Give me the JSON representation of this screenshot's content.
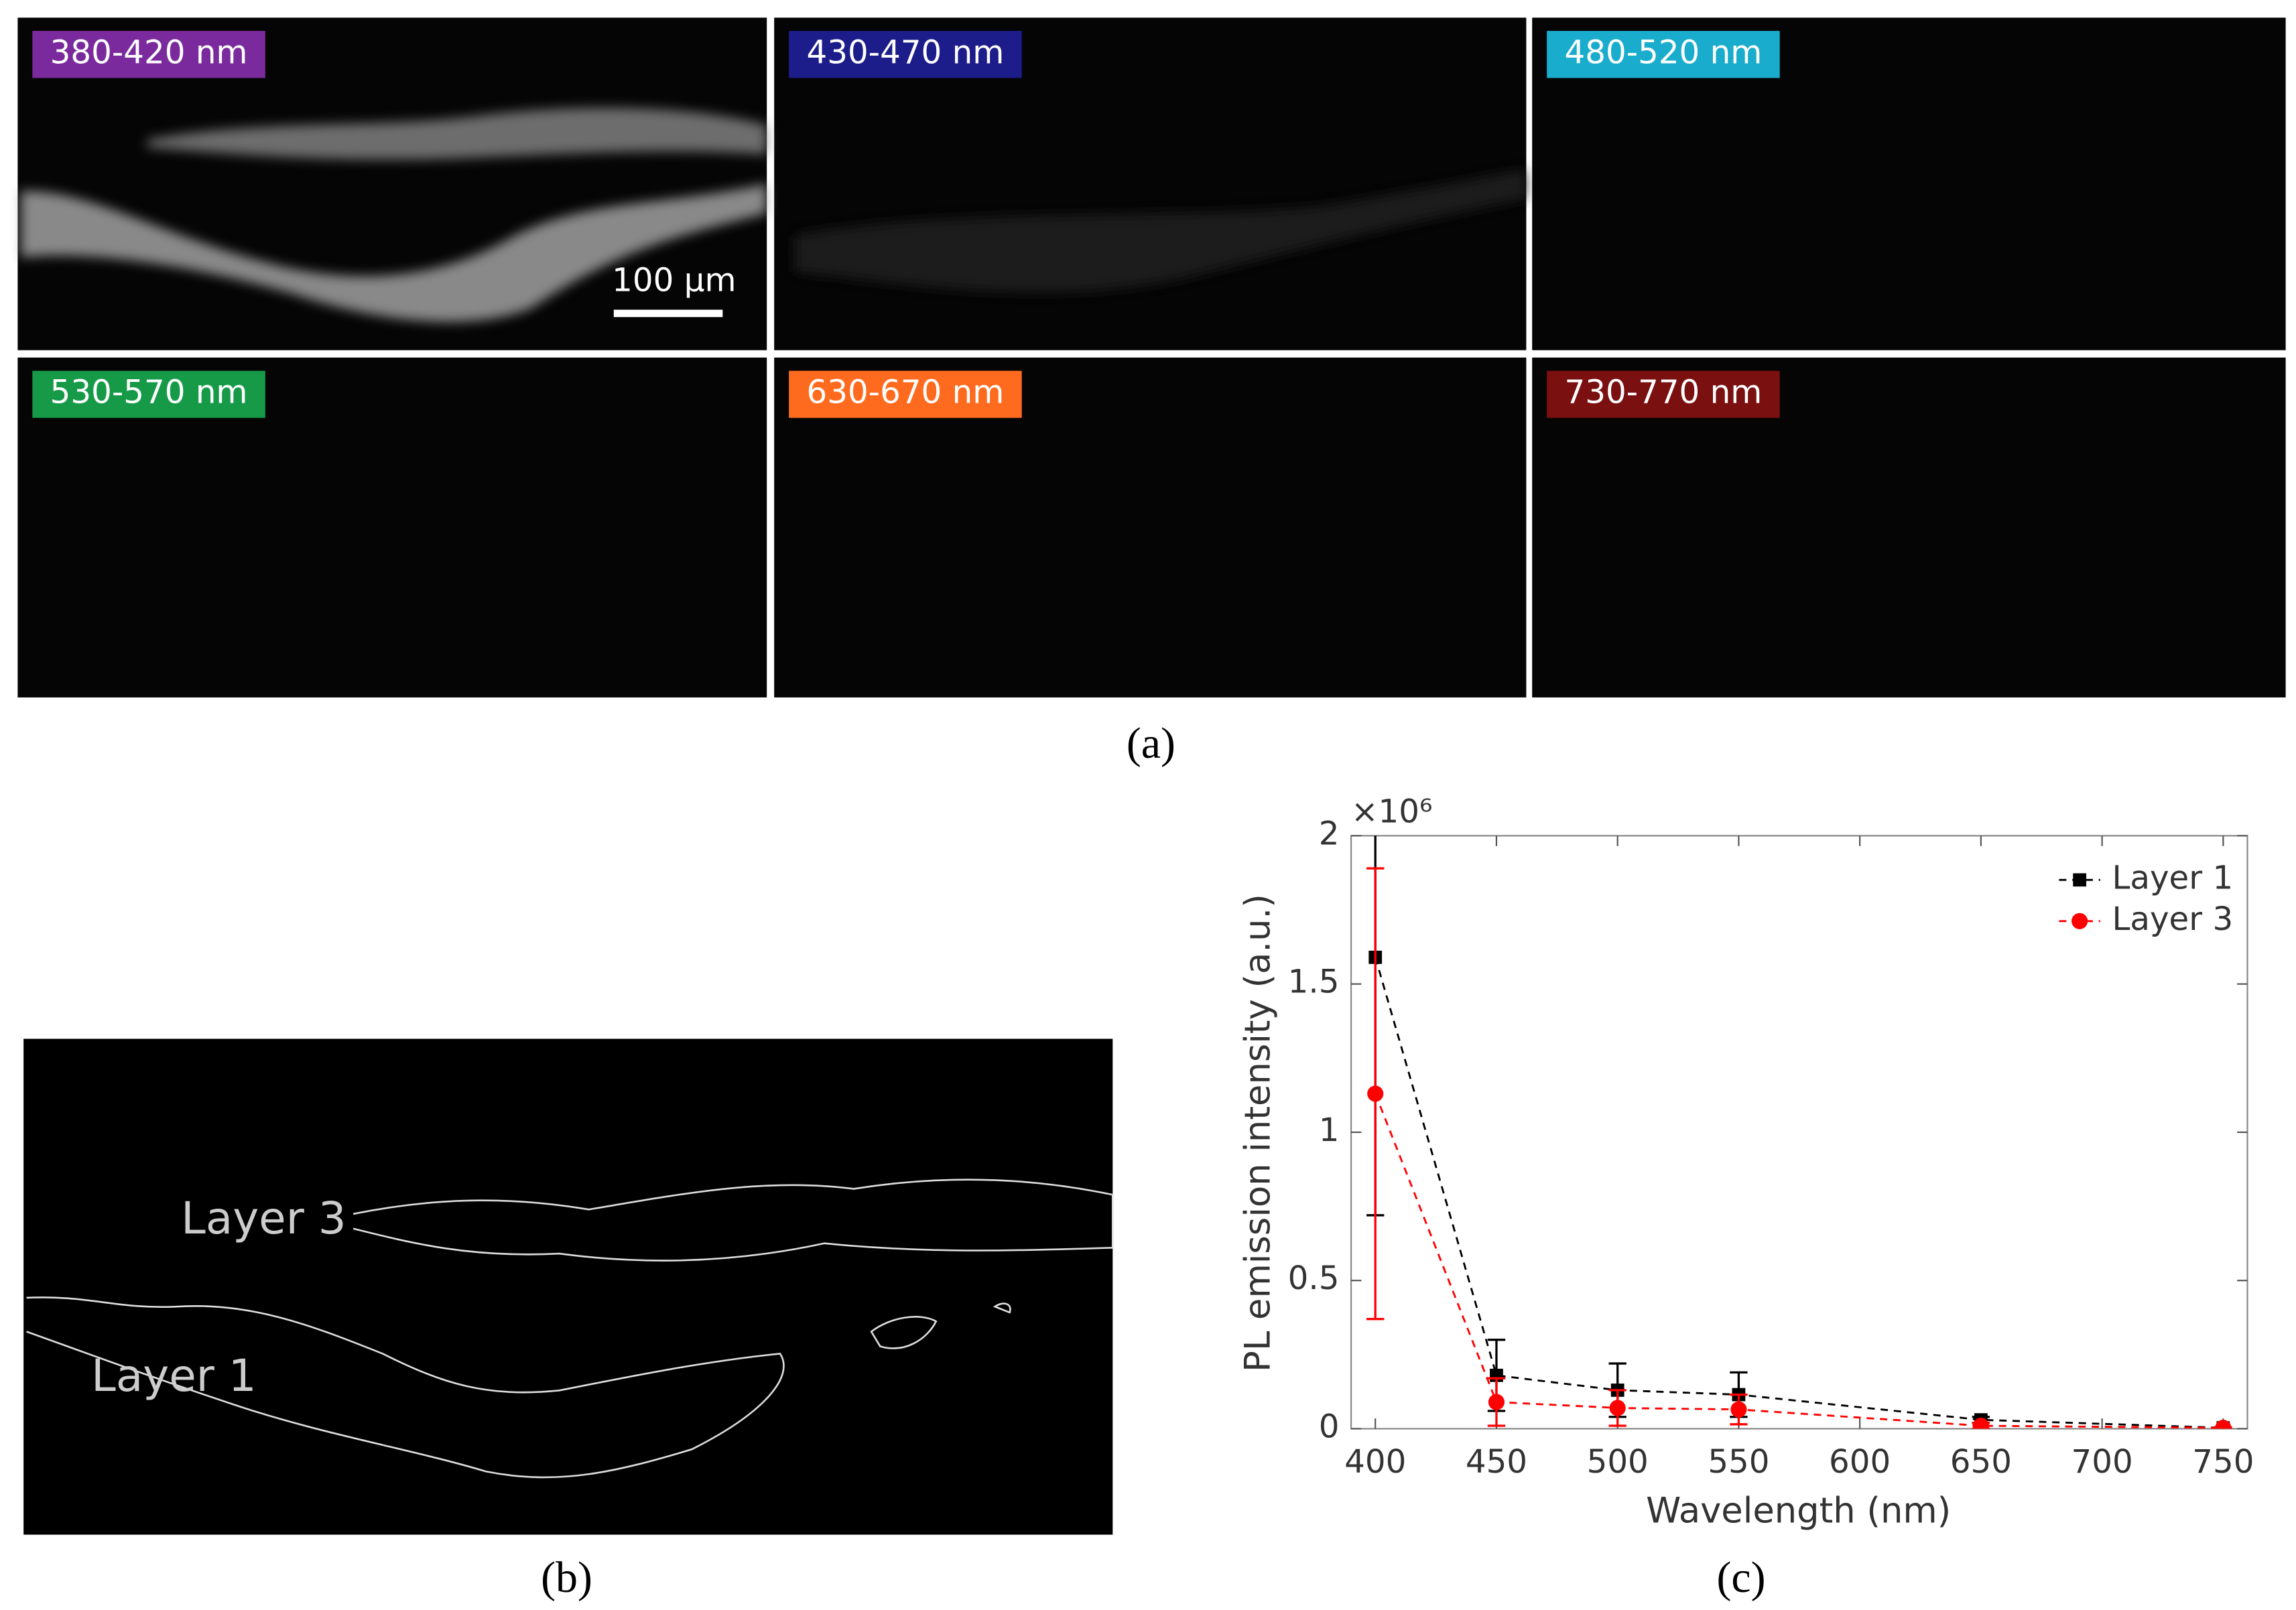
{
  "panel_a": {
    "caption": "(a)",
    "scale_bar": "100 µm",
    "tiles": [
      {
        "label": "380-420 nm",
        "color": "#7a2a9c"
      },
      {
        "label": "430-470 nm",
        "color": "#1c1c8a"
      },
      {
        "label": "480-520 nm",
        "color": "#1aaccc"
      },
      {
        "label": "530-570 nm",
        "color": "#169a48"
      },
      {
        "label": "630-670 nm",
        "color": "#ff6b1e"
      },
      {
        "label": "730-770 nm",
        "color": "#7a1010"
      }
    ]
  },
  "panel_b": {
    "caption": "(b)",
    "labels": [
      "Layer 3",
      "Layer 1"
    ]
  },
  "chart_data": {
    "type": "line",
    "caption": "(c)",
    "x_label": "Wavelength (nm)",
    "y_label": "PL emission intensity (a.u.)",
    "y_multiplier": "×10⁶",
    "x": [
      400,
      450,
      500,
      550,
      650,
      750
    ],
    "xlim": [
      390,
      760
    ],
    "xticks": [
      400,
      450,
      500,
      550,
      600,
      650,
      700,
      750
    ],
    "ylim": [
      0,
      2
    ],
    "yticks": [
      0,
      0.5,
      1,
      1.5,
      2
    ],
    "grid": false,
    "legend": "upper right",
    "series": [
      {
        "name": "Layer 1",
        "color": "#000000",
        "marker": "square",
        "values": [
          1.59,
          0.18,
          0.13,
          0.115,
          0.03,
          0.003
        ],
        "errors": [
          0.87,
          0.12,
          0.09,
          0.075,
          0.01,
          0.002
        ]
      },
      {
        "name": "Layer 3",
        "color": "#ff0000",
        "marker": "circle",
        "values": [
          1.13,
          0.09,
          0.07,
          0.065,
          0.01,
          0.003
        ],
        "errors": [
          0.76,
          0.08,
          0.06,
          0.05,
          0.01,
          0.002
        ]
      }
    ]
  }
}
